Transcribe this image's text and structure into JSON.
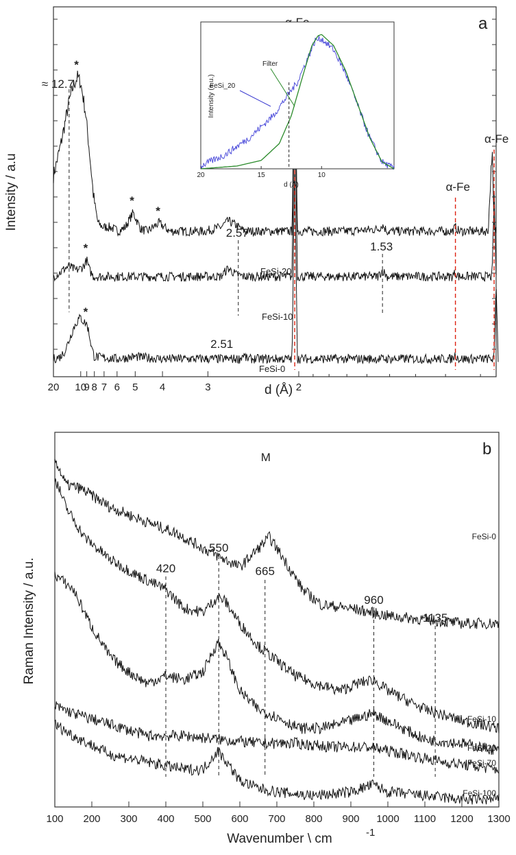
{
  "chart_data": [
    {
      "type": "line",
      "panel": "a",
      "xlabel": "d (Å)",
      "ylabel": "Intensity / a.u",
      "x_ticks": [
        "20",
        "10",
        "9",
        "8",
        "7",
        "6",
        "5",
        "4",
        "3",
        "2"
      ],
      "x_scale": "reciprocal",
      "xlim": [
        20,
        1.16
      ],
      "grid": false,
      "series": [
        {
          "name": "FeSi-20",
          "points": [
            [
              20,
              0.44
            ],
            [
              16,
              0.58
            ],
            [
              14,
              0.7
            ],
            [
              12.7,
              0.8
            ],
            [
              11.5,
              0.88
            ],
            [
              10.6,
              0.92
            ],
            [
              10,
              0.89
            ],
            [
              9.2,
              0.75
            ],
            [
              8.6,
              0.55
            ],
            [
              8.1,
              0.34
            ],
            [
              7.6,
              0.21
            ],
            [
              7.1,
              0.19
            ],
            [
              6.5,
              0.19
            ],
            [
              5.9,
              0.17
            ],
            [
              5.5,
              0.19
            ],
            [
              5.1,
              0.26
            ],
            [
              4.75,
              0.18
            ],
            [
              4.5,
              0.17
            ],
            [
              4.1,
              0.21
            ],
            [
              3.8,
              0.17
            ],
            [
              3.3,
              0.17
            ],
            [
              3.05,
              0.17
            ],
            [
              2.8,
              0.19
            ],
            [
              2.7,
              0.22
            ],
            [
              2.6,
              0.2
            ],
            [
              2.5,
              0.17
            ],
            [
              2.2,
              0.17
            ],
            [
              2.05,
              0.17
            ],
            [
              2.03,
              1.18
            ],
            [
              2.01,
              0.17
            ],
            [
              1.7,
              0.17
            ],
            [
              1.55,
              0.18
            ],
            [
              1.53,
              0.2
            ],
            [
              1.51,
              0.17
            ],
            [
              1.4,
              0.17
            ],
            [
              1.28,
              0.17
            ],
            [
              1.27,
              0.19
            ],
            [
              1.26,
              0.17
            ],
            [
              1.18,
              0.17
            ],
            [
              1.17,
              0.57
            ],
            [
              1.165,
              0.17
            ],
            [
              1.16,
              0.17
            ]
          ]
        },
        {
          "name": "FeSi-10",
          "points": [
            [
              20,
              0.1
            ],
            [
              16,
              0.12
            ],
            [
              14,
              0.14
            ],
            [
              12.7,
              0.15
            ],
            [
              11,
              0.13
            ],
            [
              10,
              0.14
            ],
            [
              9.5,
              0.15
            ],
            [
              9,
              0.18
            ],
            [
              8.6,
              0.13
            ],
            [
              8.1,
              0.1
            ],
            [
              7,
              0.1
            ],
            [
              5,
              0.1
            ],
            [
              3,
              0.1
            ],
            [
              2.8,
              0.1
            ],
            [
              2.7,
              0.14
            ],
            [
              2.6,
              0.11
            ],
            [
              2.5,
              0.1
            ],
            [
              2.05,
              0.1
            ],
            [
              2.03,
              1.1
            ],
            [
              2.01,
              0.1
            ],
            [
              1.55,
              0.1
            ],
            [
              1.53,
              0.13
            ],
            [
              1.51,
              0.1
            ],
            [
              1.28,
              0.1
            ],
            [
              1.27,
              0.12
            ],
            [
              1.26,
              0.1
            ],
            [
              1.17,
              0.1
            ],
            [
              1.165,
              0.5
            ],
            [
              1.16,
              0.1
            ]
          ]
        },
        {
          "name": "FeSi-0",
          "points": [
            [
              20,
              0.0
            ],
            [
              16,
              0.01
            ],
            [
              14,
              0.04
            ],
            [
              12.5,
              0.1
            ],
            [
              11.5,
              0.15
            ],
            [
              10.5,
              0.19
            ],
            [
              10,
              0.2
            ],
            [
              9.5,
              0.18
            ],
            [
              9,
              0.17
            ],
            [
              8.7,
              0.13
            ],
            [
              8.3,
              0.05
            ],
            [
              8,
              0.01
            ],
            [
              6,
              0.0
            ],
            [
              5,
              0.01
            ],
            [
              4,
              0.0
            ],
            [
              3,
              0.0
            ],
            [
              2.55,
              0.0
            ],
            [
              2.51,
              0.02
            ],
            [
              2.47,
              0.0
            ],
            [
              2.05,
              0.0
            ],
            [
              2.03,
              0.98
            ],
            [
              2.01,
              0.0
            ],
            [
              1.53,
              0.0
            ],
            [
              1.28,
              0.0
            ],
            [
              1.27,
              0.02
            ],
            [
              1.26,
              0.0
            ],
            [
              1.165,
              0.0
            ],
            [
              1.16,
              0.38
            ],
            [
              1.155,
              0.0
            ]
          ]
        }
      ],
      "annotations": [
        {
          "text": "≈ 12.7",
          "x": 12.7,
          "kind": "dashed"
        },
        {
          "text": "2.57",
          "x": 2.57,
          "kind": "dashed"
        },
        {
          "text": "1.53",
          "x": 1.53,
          "kind": "dashed"
        },
        {
          "text": "2.51",
          "x": 2.51,
          "kind": "label"
        },
        {
          "text": "α-Fe",
          "x": 2.03,
          "kind": "red-dashed"
        },
        {
          "text": "α-Fe",
          "x": 1.27,
          "kind": "red-dashed"
        },
        {
          "text": "α-Fe",
          "x": 1.165,
          "kind": "red-dashed"
        }
      ],
      "star_marks": [
        {
          "symbol": "*",
          "x": 10.6,
          "series": "FeSi-20"
        },
        {
          "symbol": "*",
          "x": 5.1,
          "series": "FeSi-20"
        },
        {
          "symbol": "*",
          "x": 4.1,
          "series": "FeSi-20"
        },
        {
          "symbol": "*",
          "x": 9.0,
          "series": "FeSi-10"
        },
        {
          "symbol": "*",
          "x": 9.0,
          "series": "FeSi-0"
        }
      ],
      "panel_label": "a",
      "inset": {
        "xlabel": "d (Å)",
        "ylabel": "Intensity (a.u.)",
        "x_ticks": [
          "20",
          "15",
          "10"
        ],
        "xlim": [
          20,
          4
        ],
        "dashed_x": 12.7,
        "series": [
          {
            "name": "FeSi_20",
            "color": "#4040d8",
            "points": [
              [
                20,
                0.02
              ],
              [
                18,
                0.1
              ],
              [
                16,
                0.22
              ],
              [
                14,
                0.38
              ],
              [
                12,
                0.62
              ],
              [
                11,
                0.82
              ],
              [
                10.5,
                0.92
              ],
              [
                10,
                0.93
              ],
              [
                9,
                0.85
              ],
              [
                8,
                0.68
              ],
              [
                7,
                0.45
              ],
              [
                6,
                0.22
              ],
              [
                5,
                0.05
              ],
              [
                4,
                0.0
              ]
            ]
          },
          {
            "name": "Filter",
            "color": "#2a8a2a",
            "points": [
              [
                20,
                0.0
              ],
              [
                17,
                0.02
              ],
              [
                15,
                0.06
              ],
              [
                13.5,
                0.18
              ],
              [
                12.5,
                0.38
              ],
              [
                11.5,
                0.68
              ],
              [
                10.8,
                0.88
              ],
              [
                10.3,
                0.95
              ],
              [
                10,
                0.96
              ],
              [
                9,
                0.88
              ],
              [
                8,
                0.7
              ],
              [
                7,
                0.46
              ],
              [
                6,
                0.22
              ],
              [
                5,
                0.05
              ],
              [
                4,
                0.0
              ]
            ]
          }
        ]
      }
    },
    {
      "type": "line",
      "panel": "b",
      "xlabel": "Wavenumber \\ cm",
      "xlabel_sup": "-1",
      "ylabel": "Raman Intensity / a.u.",
      "x_ticks": [
        "100",
        "200",
        "300",
        "400",
        "500",
        "600",
        "700",
        "800",
        "900",
        "1000",
        "1100",
        "1200",
        "1300"
      ],
      "xlim": [
        100,
        1300
      ],
      "grid": false,
      "series": [
        {
          "name": "FeSi-0",
          "points": [
            [
              100,
              0.93
            ],
            [
              130,
              0.86
            ],
            [
              170,
              0.85
            ],
            [
              250,
              0.8
            ],
            [
              350,
              0.76
            ],
            [
              430,
              0.73
            ],
            [
              520,
              0.68
            ],
            [
              600,
              0.64
            ],
            [
              650,
              0.69
            ],
            [
              680,
              0.72
            ],
            [
              720,
              0.66
            ],
            [
              770,
              0.58
            ],
            [
              820,
              0.54
            ],
            [
              900,
              0.53
            ],
            [
              1000,
              0.51
            ],
            [
              1100,
              0.5
            ],
            [
              1200,
              0.49
            ],
            [
              1300,
              0.49
            ]
          ]
        },
        {
          "name": "FeSi-10",
          "points": [
            [
              100,
              0.88
            ],
            [
              130,
              0.8
            ],
            [
              180,
              0.72
            ],
            [
              250,
              0.66
            ],
            [
              320,
              0.62
            ],
            [
              400,
              0.58
            ],
            [
              450,
              0.53
            ],
            [
              500,
              0.52
            ],
            [
              540,
              0.56
            ],
            [
              560,
              0.55
            ],
            [
              600,
              0.49
            ],
            [
              650,
              0.43
            ],
            [
              700,
              0.39
            ],
            [
              750,
              0.35
            ],
            [
              800,
              0.33
            ],
            [
              870,
              0.31
            ],
            [
              920,
              0.33
            ],
            [
              960,
              0.34
            ],
            [
              1000,
              0.31
            ],
            [
              1100,
              0.26
            ],
            [
              1200,
              0.23
            ],
            [
              1300,
              0.21
            ]
          ]
        },
        {
          "name": "FeSi-20",
          "points": [
            [
              100,
              0.62
            ],
            [
              150,
              0.58
            ],
            [
              200,
              0.48
            ],
            [
              250,
              0.4
            ],
            [
              300,
              0.36
            ],
            [
              350,
              0.33
            ],
            [
              400,
              0.35
            ],
            [
              450,
              0.34
            ],
            [
              500,
              0.36
            ],
            [
              540,
              0.44
            ],
            [
              560,
              0.41
            ],
            [
              600,
              0.31
            ],
            [
              650,
              0.26
            ],
            [
              700,
              0.24
            ],
            [
              760,
              0.21
            ],
            [
              820,
              0.21
            ],
            [
              900,
              0.23
            ],
            [
              960,
              0.25
            ],
            [
              1000,
              0.23
            ],
            [
              1100,
              0.18
            ],
            [
              1200,
              0.17
            ],
            [
              1300,
              0.15
            ]
          ]
        },
        {
          "name": "FeSi-70",
          "points": [
            [
              100,
              0.27
            ],
            [
              150,
              0.25
            ],
            [
              250,
              0.22
            ],
            [
              350,
              0.19
            ],
            [
              450,
              0.19
            ],
            [
              550,
              0.18
            ],
            [
              650,
              0.17
            ],
            [
              750,
              0.17
            ],
            [
              850,
              0.16
            ],
            [
              950,
              0.16
            ],
            [
              1050,
              0.14
            ],
            [
              1150,
              0.12
            ],
            [
              1300,
              0.1
            ]
          ]
        },
        {
          "name": "FeSi-100",
          "points": [
            [
              100,
              0.22
            ],
            [
              150,
              0.19
            ],
            [
              250,
              0.14
            ],
            [
              350,
              0.12
            ],
            [
              450,
              0.1
            ],
            [
              500,
              0.1
            ],
            [
              540,
              0.15
            ],
            [
              565,
              0.12
            ],
            [
              600,
              0.07
            ],
            [
              650,
              0.05
            ],
            [
              700,
              0.04
            ],
            [
              800,
              0.03
            ],
            [
              900,
              0.04
            ],
            [
              960,
              0.06
            ],
            [
              1000,
              0.04
            ],
            [
              1100,
              0.03
            ],
            [
              1200,
              0.02
            ],
            [
              1300,
              0.02
            ]
          ]
        }
      ],
      "peak_labels": [
        {
          "text": "M",
          "x": 670
        },
        {
          "text": "420",
          "x": 400
        },
        {
          "text": "550",
          "x": 543
        },
        {
          "text": "665",
          "x": 668
        },
        {
          "text": "960",
          "x": 962
        },
        {
          "text": "1135",
          "x": 1128
        }
      ],
      "panel_label": "b"
    }
  ]
}
